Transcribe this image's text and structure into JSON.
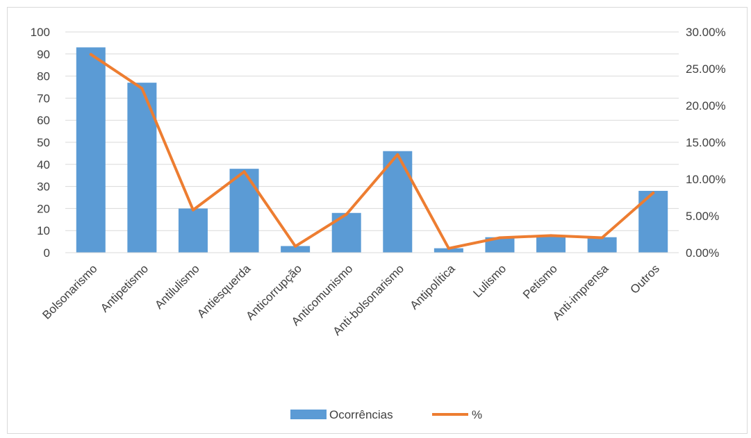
{
  "chart_data": {
    "type": "bar",
    "categories": [
      "Bolsonarismo",
      "Antipetismo",
      "Antilulismo",
      "Antiesquerda",
      "Anticorrupção",
      "Anticomunismo",
      "Anti-bolsonarismo",
      "Antipolítica",
      "Lulismo",
      "Petismo",
      "Anti-imprensa",
      "Outros"
    ],
    "series": [
      {
        "name": "Ocorrências",
        "type": "bar",
        "axis": "left",
        "color": "#5b9bd5",
        "values": [
          93,
          77,
          20,
          38,
          3,
          18,
          46,
          2,
          7,
          8,
          7,
          28
        ]
      },
      {
        "name": "%",
        "type": "line",
        "axis": "right",
        "color": "#ed7d31",
        "values": [
          0.2695,
          0.2232,
          0.058,
          0.1101,
          0.0087,
          0.0522,
          0.1333,
          0.0058,
          0.0203,
          0.0232,
          0.0203,
          0.0812
        ]
      }
    ],
    "y_left": {
      "min": 0,
      "max": 100,
      "step": 10,
      "ticks": [
        "0",
        "10",
        "20",
        "30",
        "40",
        "50",
        "60",
        "70",
        "80",
        "90",
        "100"
      ]
    },
    "y_right": {
      "min": 0,
      "max": 0.3,
      "step": 0.05,
      "ticks": [
        "0.00%",
        "5.00%",
        "10.00%",
        "15.00%",
        "20.00%",
        "25.00%",
        "30.00%"
      ]
    },
    "grid": true,
    "legend": "bottom",
    "title": "",
    "xlabel": "",
    "ylabel": ""
  }
}
